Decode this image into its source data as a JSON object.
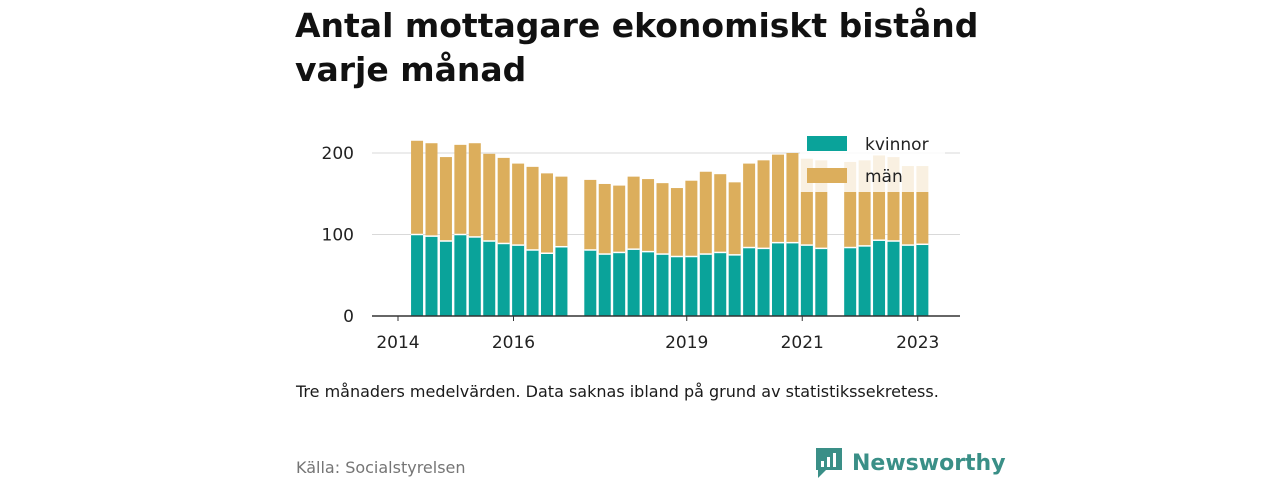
{
  "chart_data": {
    "type": "bar",
    "stacked": true,
    "title": "Antal mottagare ekonomiskt bistånd varje månad",
    "note": "Tre månaders medelvärden. Data saknas ibland på grund av statistikssekretess.",
    "source": "Källa: Socialstyrelsen",
    "brand": "Newsworthy",
    "y_ticks": [
      0,
      100,
      200
    ],
    "x_ticks": [
      2014,
      2016,
      2019,
      2021,
      2023
    ],
    "xlim": [
      2014.0,
      2023.42
    ],
    "ylim": [
      0,
      215
    ],
    "grid": true,
    "legend_position": "top-right",
    "colors": {
      "kvinnor": "#0aa39a",
      "man": "#dcae5c"
    },
    "x": [
      2014.33,
      2014.58,
      2014.83,
      2015.08,
      2015.33,
      2015.58,
      2015.83,
      2016.08,
      2016.33,
      2016.58,
      2016.83,
      2017.33,
      2017.58,
      2017.83,
      2018.08,
      2018.33,
      2018.58,
      2018.83,
      2019.08,
      2019.33,
      2019.58,
      2019.83,
      2020.08,
      2020.33,
      2020.58,
      2020.83,
      2021.08,
      2021.33,
      2021.83,
      2022.08,
      2022.33,
      2022.58,
      2022.83,
      2023.08
    ],
    "series": [
      {
        "name": "kvinnor",
        "values": [
          100,
          98,
          92,
          100,
          97,
          92,
          89,
          87,
          81,
          77,
          85,
          81,
          76,
          78,
          82,
          79,
          76,
          73,
          73,
          76,
          78,
          75,
          84,
          83,
          90,
          90,
          87,
          83,
          84,
          86,
          93,
          92,
          87,
          88
        ]
      },
      {
        "name": "män",
        "values": [
          115,
          114,
          103,
          110,
          115,
          107,
          105,
          100,
          102,
          98,
          86,
          86,
          86,
          82,
          89,
          89,
          87,
          84,
          93,
          101,
          96,
          89,
          103,
          108,
          108,
          110,
          106,
          108,
          105,
          105,
          104,
          103,
          97,
          96
        ]
      }
    ]
  }
}
